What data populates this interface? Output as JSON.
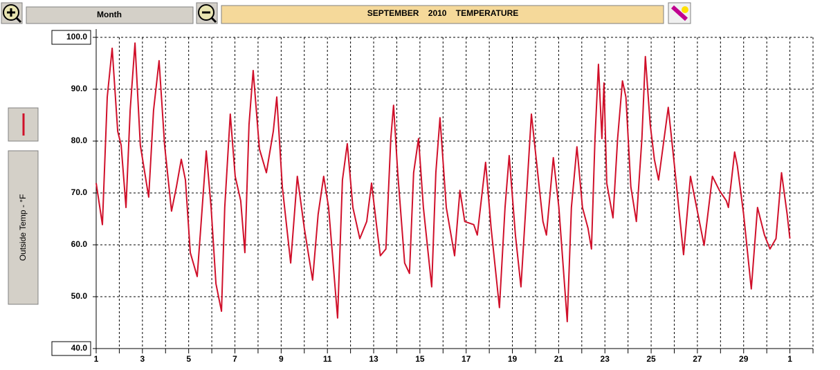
{
  "toolbar": {
    "range_button": "Month"
  },
  "chart_data": {
    "type": "line",
    "title": "SEPTEMBER    2010    TEMPERATURE",
    "x": [
      1.0,
      1.27,
      1.48,
      1.69,
      1.93,
      2.08,
      2.29,
      2.47,
      2.68,
      2.91,
      3.27,
      3.48,
      3.72,
      3.96,
      4.26,
      4.47,
      4.68,
      4.86,
      5.07,
      5.37,
      5.52,
      5.76,
      5.97,
      6.18,
      6.42,
      6.56,
      6.8,
      7.01,
      7.25,
      7.43,
      7.61,
      7.79,
      8.06,
      8.36,
      8.66,
      8.81,
      9.05,
      9.41,
      9.7,
      10.0,
      10.36,
      10.6,
      10.84,
      11.05,
      11.44,
      11.65,
      11.86,
      12.1,
      12.4,
      12.7,
      12.91,
      13.14,
      13.29,
      13.53,
      13.74,
      13.86,
      14.04,
      14.34,
      14.55,
      14.73,
      14.94,
      15.15,
      15.51,
      15.69,
      15.87,
      16.14,
      16.5,
      16.73,
      16.94,
      17.33,
      17.48,
      17.84,
      18.08,
      18.44,
      18.68,
      18.86,
      19.13,
      19.37,
      19.58,
      19.82,
      20.03,
      20.32,
      20.47,
      20.77,
      21.01,
      21.37,
      21.55,
      21.79,
      22.03,
      22.27,
      22.42,
      22.57,
      22.72,
      22.87,
      22.96,
      23.08,
      23.35,
      23.55,
      23.76,
      23.91,
      24.12,
      24.36,
      24.6,
      24.75,
      24.96,
      25.14,
      25.32,
      25.56,
      25.74,
      26.01,
      26.4,
      26.7,
      26.91,
      27.29,
      27.65,
      27.95,
      28.25,
      28.34,
      28.61,
      28.73,
      29.0,
      29.33,
      29.6,
      29.9,
      30.14,
      30.4,
      30.64,
      30.88,
      31.0
    ],
    "series": [
      {
        "name": "Outside Temp - °F",
        "color": "#d0102a",
        "values": [
          71.9,
          63.9,
          88.5,
          97.9,
          81.9,
          79.2,
          67.2,
          85.9,
          98.9,
          79.2,
          69.2,
          85.9,
          95.5,
          79.2,
          66.5,
          71.2,
          76.5,
          72.5,
          58.5,
          53.9,
          63.2,
          78.1,
          67.2,
          52.5,
          47.2,
          67.2,
          85.2,
          73.2,
          68.5,
          58.5,
          83.2,
          93.6,
          78.5,
          73.9,
          81.9,
          88.5,
          71.2,
          56.5,
          73.2,
          63.2,
          53.2,
          65.9,
          73.2,
          67.2,
          45.9,
          72.5,
          79.5,
          67.2,
          61.2,
          64.5,
          71.9,
          63.2,
          57.9,
          59.2,
          80.5,
          86.9,
          73.9,
          56.5,
          54.5,
          73.9,
          80.5,
          67.2,
          51.9,
          73.9,
          84.5,
          67.2,
          57.9,
          70.5,
          64.5,
          63.9,
          61.9,
          75.9,
          63.2,
          47.9,
          67.2,
          77.2,
          61.9,
          51.9,
          67.2,
          85.2,
          76.5,
          64.5,
          61.9,
          76.8,
          67.2,
          45.2,
          67.2,
          78.9,
          67.2,
          63.2,
          59.2,
          80.5,
          94.8,
          80.5,
          91.2,
          71.9,
          65.2,
          80.5,
          91.6,
          88.5,
          71.2,
          64.5,
          80.5,
          96.3,
          83.2,
          76.5,
          72.5,
          80.5,
          86.5,
          75.2,
          58.1,
          73.2,
          68.5,
          59.9,
          73.2,
          70.5,
          68.5,
          67.2,
          77.9,
          75.2,
          65.9,
          51.5,
          67.2,
          61.9,
          59.2,
          61.2,
          73.9,
          65.9,
          61.2
        ]
      }
    ],
    "xlim": [
      1,
      32
    ],
    "xticks": [
      1,
      3,
      5,
      7,
      9,
      11,
      13,
      15,
      17,
      19,
      21,
      23,
      25,
      27,
      29,
      {
        "value": 31,
        "label": "1"
      }
    ],
    "xminorticks": [
      2,
      4,
      6,
      8,
      10,
      12,
      14,
      16,
      18,
      20,
      22,
      24,
      26,
      28,
      30,
      32
    ],
    "ylim": [
      40,
      100
    ],
    "yticks": [
      {
        "value": 40,
        "label": "40.0"
      },
      {
        "value": 50,
        "label": "50.0"
      },
      {
        "value": 60,
        "label": "60.0"
      },
      {
        "value": 70,
        "label": "70.0"
      },
      {
        "value": 80,
        "label": "80.0"
      },
      {
        "value": 90,
        "label": "90.0"
      },
      {
        "value": 100,
        "label": "100.0"
      }
    ],
    "grid": true
  }
}
